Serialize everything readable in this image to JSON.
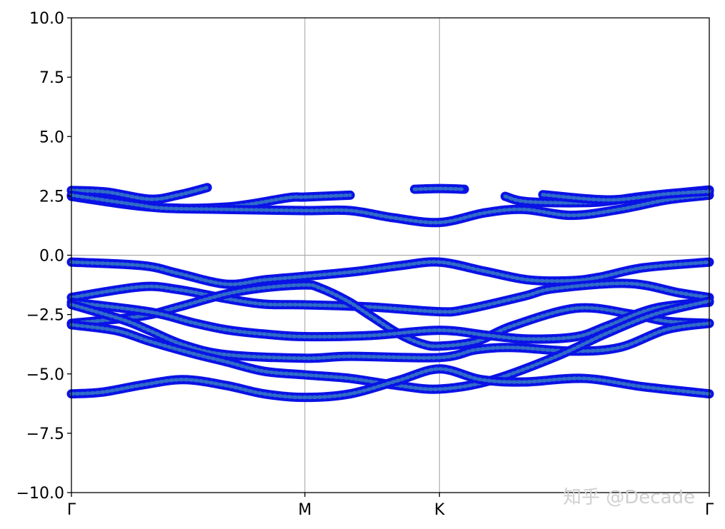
{
  "chart_data": {
    "type": "line",
    "title": "",
    "xlabel": "",
    "ylabel": "",
    "ylim": [
      -10,
      10
    ],
    "xlim": [
      0,
      1
    ],
    "yticks": [
      10.0,
      7.5,
      5.0,
      2.5,
      0.0,
      -2.5,
      -5.0,
      -7.5,
      -10.0
    ],
    "ytick_labels": [
      "10.0",
      "7.5",
      "5.0",
      "2.5",
      "0.0",
      "−2.5",
      "−5.0",
      "−7.5",
      "−10.0"
    ],
    "xticks": [
      {
        "label": "Γ",
        "k": 0
      },
      {
        "label": "M",
        "k": 0.366
      },
      {
        "label": "K",
        "k": 0.577
      },
      {
        "label": "Γ",
        "k": 1
      }
    ],
    "grid": "vertical lines at M and K, horizontal line at 0",
    "colors": {
      "marker_edge": "#0a12e6",
      "marker_fill": "#2f6cc8",
      "grid": "#a0a0a0"
    },
    "series": [
      {
        "points": [
          [
            0,
            -0.29
          ],
          [
            0.112,
            -0.44
          ],
          [
            0.168,
            -0.77
          ],
          [
            0.243,
            -1.22
          ],
          [
            0.302,
            -1.04
          ],
          [
            0.366,
            -0.89
          ],
          [
            0.448,
            -0.68
          ],
          [
            0.515,
            -0.44
          ],
          [
            0.577,
            -0.29
          ],
          [
            0.649,
            -0.68
          ],
          [
            0.717,
            -1.04
          ],
          [
            0.784,
            -1.07
          ],
          [
            0.829,
            -0.92
          ],
          [
            0.896,
            -0.53
          ],
          [
            1,
            -0.29
          ]
        ]
      },
      {
        "points": [
          [
            0,
            -1.78
          ],
          [
            0.109,
            -1.33
          ],
          [
            0.168,
            -1.45
          ],
          [
            0.243,
            -1.83
          ],
          [
            0.302,
            -2.06
          ],
          [
            0.366,
            -2.09
          ],
          [
            0.47,
            -2.18
          ],
          [
            0.577,
            -2.38
          ],
          [
            0.619,
            -2.28
          ],
          [
            0.709,
            -1.73
          ],
          [
            0.758,
            -1.4
          ],
          [
            0.873,
            -1.19
          ],
          [
            0.952,
            -1.58
          ],
          [
            1,
            -1.78
          ]
        ]
      },
      {
        "points": [
          [
            0,
            -2.87
          ],
          [
            0.109,
            -2.57
          ],
          [
            0.168,
            -2.18
          ],
          [
            0.243,
            -1.63
          ],
          [
            0.302,
            -1.37
          ],
          [
            0.366,
            -1.25
          ],
          [
            0.389,
            -1.37
          ],
          [
            0.433,
            -1.93
          ],
          [
            0.47,
            -2.57
          ],
          [
            0.512,
            -3.29
          ],
          [
            0.549,
            -3.73
          ],
          [
            0.577,
            -3.83
          ],
          [
            0.635,
            -3.63
          ],
          [
            0.691,
            -2.98
          ],
          [
            0.792,
            -2.23
          ],
          [
            0.877,
            -2.48
          ],
          [
            0.933,
            -2.78
          ],
          [
            1,
            -2.87
          ]
        ]
      },
      {
        "points": [
          [
            0,
            -1.98
          ],
          [
            0.123,
            -2.39
          ],
          [
            0.19,
            -2.84
          ],
          [
            0.243,
            -3.14
          ],
          [
            0.302,
            -3.32
          ],
          [
            0.366,
            -3.43
          ],
          [
            0.47,
            -3.38
          ],
          [
            0.577,
            -3.16
          ],
          [
            0.653,
            -3.38
          ],
          [
            0.717,
            -3.53
          ],
          [
            0.792,
            -3.43
          ],
          [
            0.84,
            -2.98
          ],
          [
            0.915,
            -2.23
          ],
          [
            1,
            -1.98
          ]
        ]
      },
      {
        "points": [
          [
            0,
            -2.08
          ],
          [
            0.082,
            -2.73
          ],
          [
            0.123,
            -3.18
          ],
          [
            0.176,
            -3.78
          ],
          [
            0.243,
            -4.19
          ],
          [
            0.366,
            -4.34
          ],
          [
            0.437,
            -4.26
          ],
          [
            0.577,
            -4.31
          ],
          [
            0.635,
            -3.98
          ],
          [
            0.694,
            -3.89
          ],
          [
            0.784,
            -4.04
          ],
          [
            0.859,
            -3.89
          ],
          [
            0.933,
            -3.13
          ],
          [
            1,
            -2.87
          ]
        ]
      },
      {
        "points": [
          [
            0,
            -2.93
          ],
          [
            0.071,
            -3.18
          ],
          [
            0.123,
            -3.63
          ],
          [
            0.19,
            -4.14
          ],
          [
            0.243,
            -4.49
          ],
          [
            0.302,
            -4.89
          ],
          [
            0.366,
            -5.04
          ],
          [
            0.437,
            -5.19
          ],
          [
            0.512,
            -5.49
          ],
          [
            0.577,
            -5.64
          ],
          [
            0.657,
            -5.28
          ],
          [
            0.758,
            -4.29
          ],
          [
            0.84,
            -3.28
          ],
          [
            0.915,
            -2.48
          ],
          [
            1,
            -1.93
          ]
        ]
      },
      {
        "points": [
          [
            0,
            -5.84
          ],
          [
            0.048,
            -5.77
          ],
          [
            0.112,
            -5.46
          ],
          [
            0.176,
            -5.24
          ],
          [
            0.243,
            -5.49
          ],
          [
            0.302,
            -5.84
          ],
          [
            0.366,
            -5.99
          ],
          [
            0.437,
            -5.84
          ],
          [
            0.512,
            -5.28
          ],
          [
            0.577,
            -4.79
          ],
          [
            0.642,
            -5.24
          ],
          [
            0.709,
            -5.34
          ],
          [
            0.803,
            -5.19
          ],
          [
            0.896,
            -5.54
          ],
          [
            1,
            -5.84
          ]
        ]
      },
      {
        "points": [
          [
            0,
            2.48
          ],
          [
            0.123,
            2.03
          ],
          [
            0.243,
            2.03
          ],
          [
            0.339,
            2.42
          ],
          [
            0.366,
            2.45
          ],
          [
            0.437,
            2.53
          ]
        ]
      },
      {
        "points": [
          [
            0,
            2.73
          ],
          [
            0.056,
            2.66
          ],
          [
            0.123,
            2.36
          ],
          [
            0.168,
            2.54
          ],
          [
            0.213,
            2.85
          ]
        ]
      },
      {
        "points": [
          [
            0,
            2.53
          ],
          [
            0.101,
            2.13
          ],
          [
            0.146,
            1.98
          ],
          [
            0.243,
            1.93
          ],
          [
            0.366,
            1.88
          ],
          [
            0.437,
            1.88
          ],
          [
            0.504,
            1.58
          ],
          [
            0.577,
            1.38
          ],
          [
            0.649,
            1.79
          ],
          [
            0.709,
            1.93
          ],
          [
            0.784,
            1.68
          ],
          [
            0.859,
            1.93
          ],
          [
            0.933,
            2.33
          ],
          [
            1,
            2.53
          ]
        ]
      },
      {
        "points": [
          [
            0.538,
            2.78
          ],
          [
            0.577,
            2.81
          ],
          [
            0.616,
            2.78
          ]
        ]
      },
      {
        "points": [
          [
            0.68,
            2.48
          ],
          [
            0.717,
            2.25
          ],
          [
            0.821,
            2.23
          ],
          [
            0.896,
            2.48
          ],
          [
            1,
            2.75
          ]
        ]
      },
      {
        "points": [
          [
            0.739,
            2.55
          ],
          [
            0.843,
            2.33
          ],
          [
            0.933,
            2.58
          ],
          [
            1,
            2.69
          ]
        ]
      }
    ]
  },
  "watermark": "知乎 @Decade"
}
